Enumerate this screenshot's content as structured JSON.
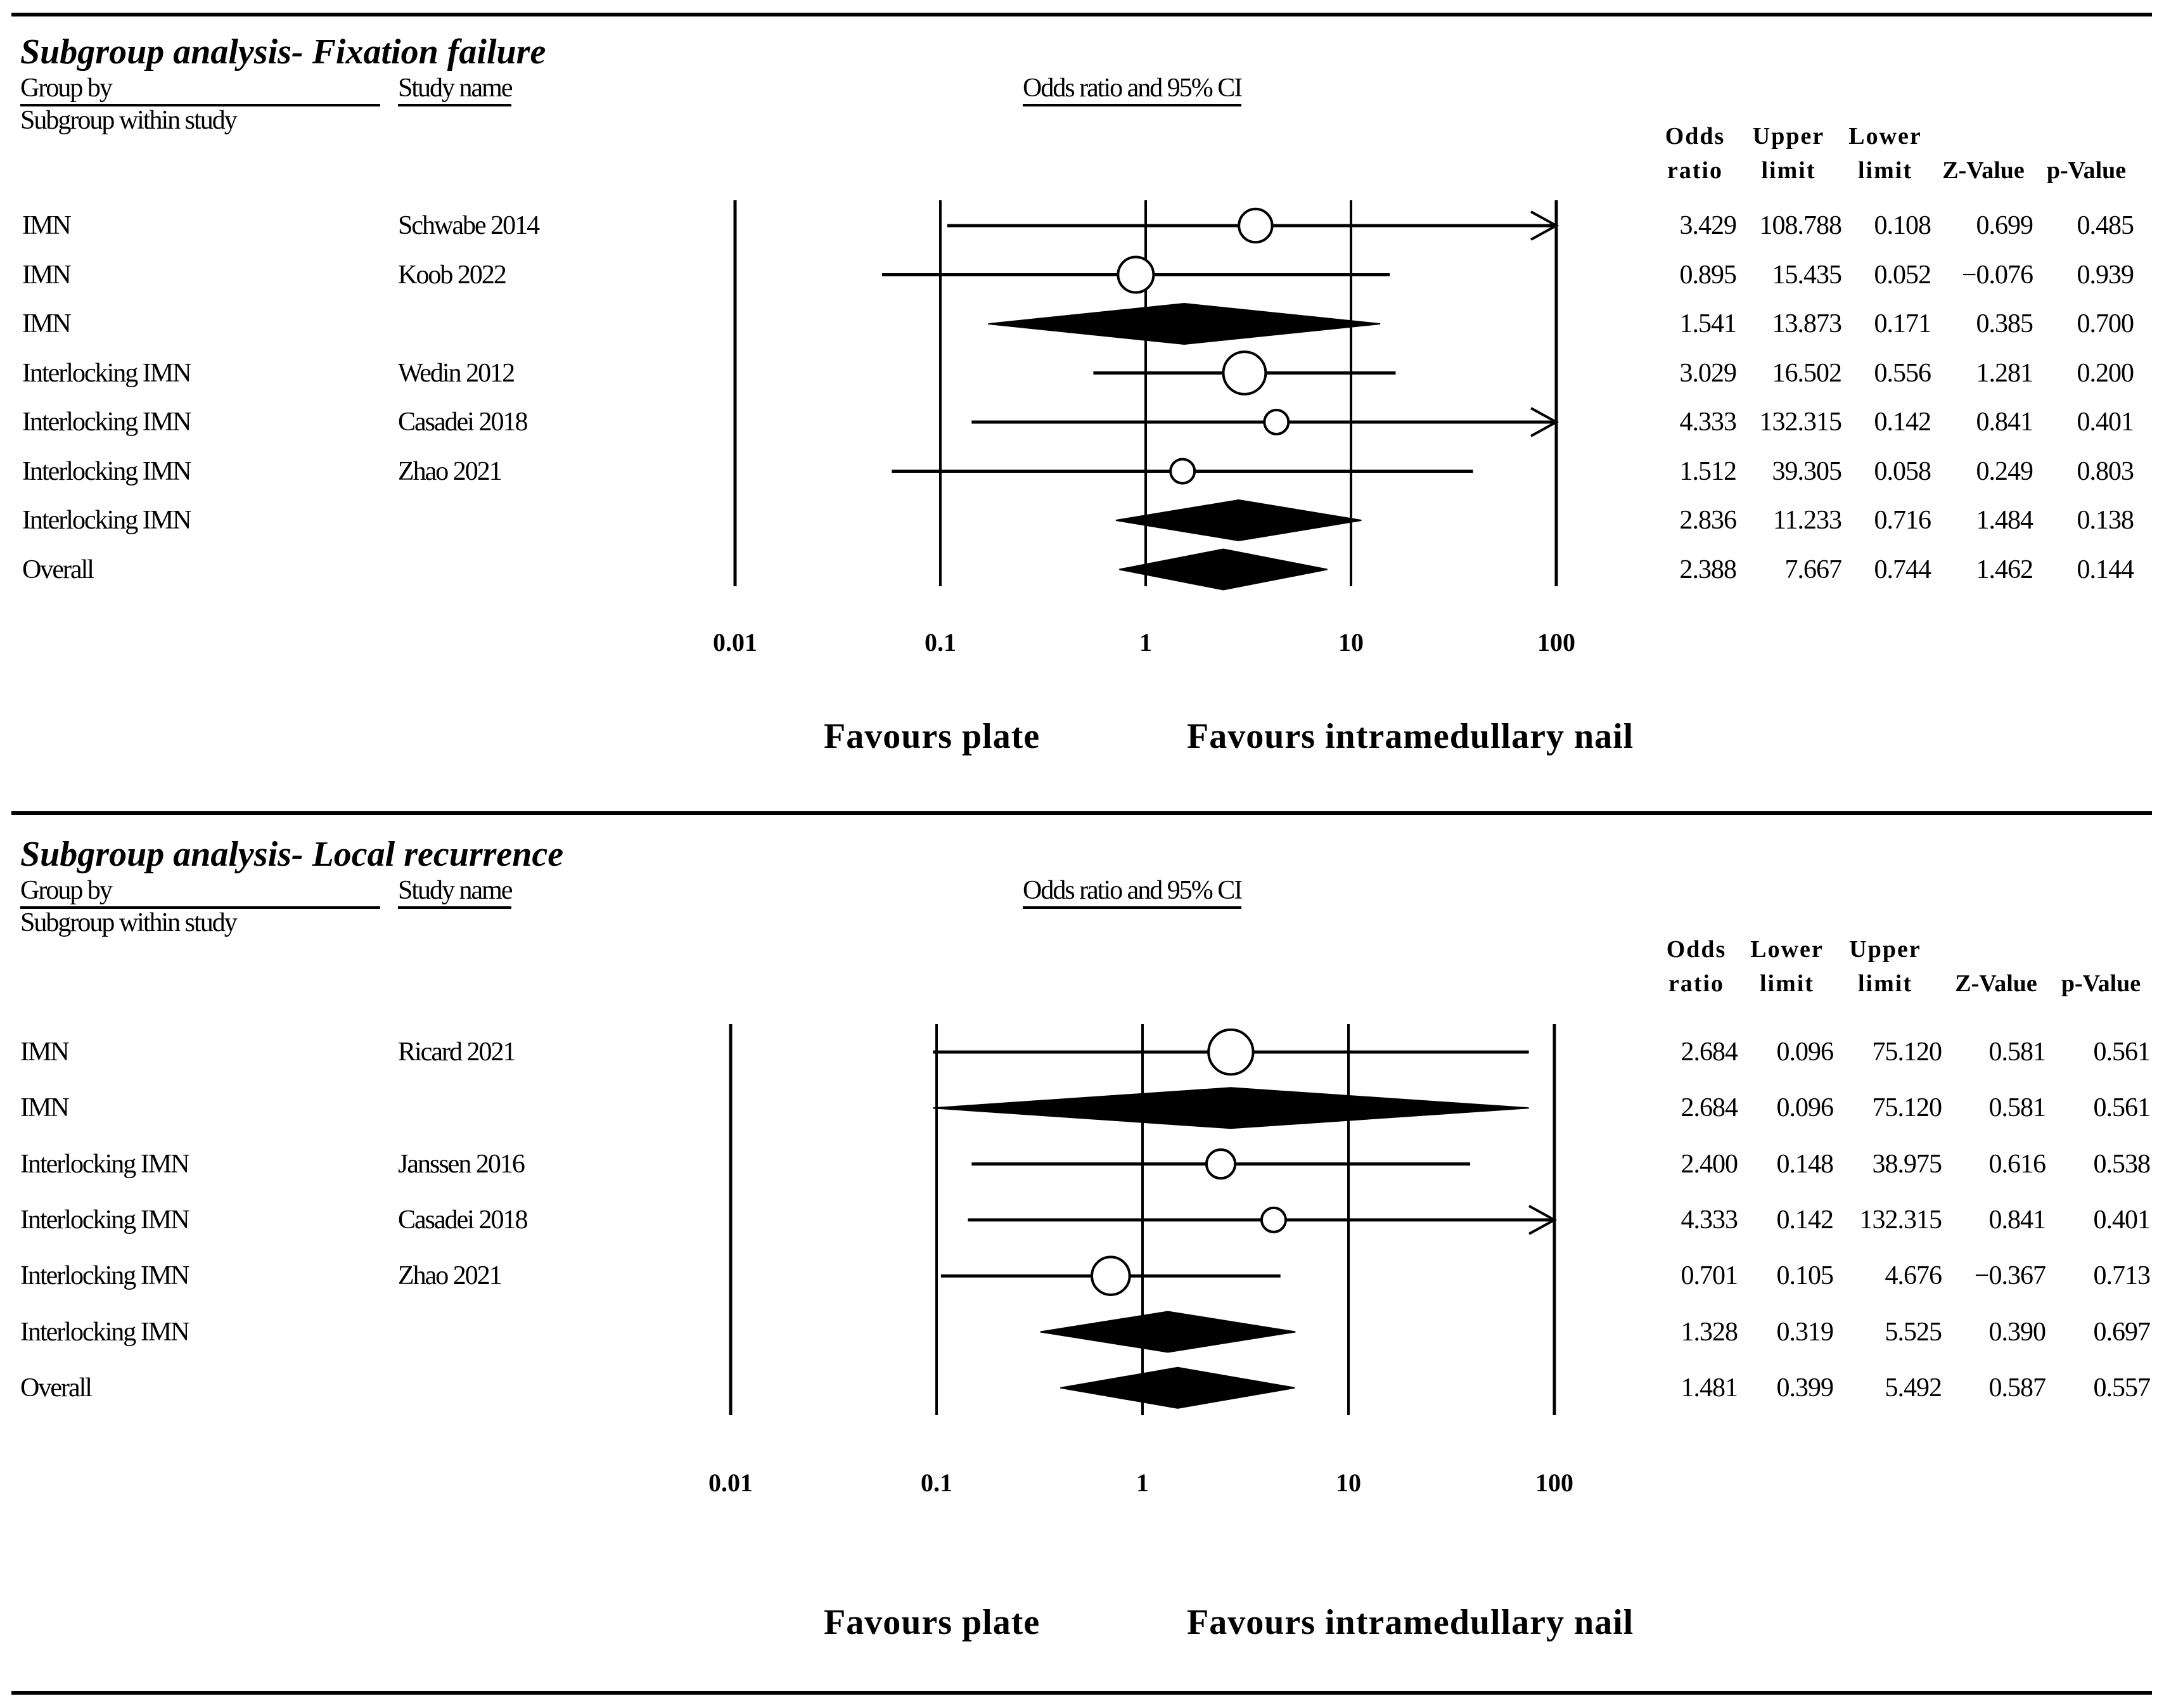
{
  "chart_data": [
    {
      "type": "forest",
      "title": "Subgroup  analysis- Fixation failure",
      "headers": {
        "group_by": "Group by",
        "subgroup_within_study": "Subgroup within study",
        "study_name": "Study name",
        "effect": "Odds ratio and 95% CI",
        "col1": [
          "Odds",
          "ratio"
        ],
        "col2": [
          "Upper",
          "limit"
        ],
        "col3": [
          "Lower",
          "limit"
        ],
        "col4": "Z-Value",
        "col5": "p-Value"
      },
      "x_scale": "log",
      "xlim": [
        0.01,
        100
      ],
      "x_ticks": [
        "0.01",
        "0.1",
        "1",
        "10",
        "100"
      ],
      "favours_left": "Favours plate",
      "favours_right": "Favours intramedullary nail",
      "rows": [
        {
          "group": "IMN",
          "study": "Schwabe 2014",
          "kind": "study",
          "weight": 0.9,
          "or": 3.429,
          "lower": 0.108,
          "upper": 108.788,
          "cells": [
            "3.429",
            "108.788",
            "0.108",
            "0.699",
            "0.485"
          ]
        },
        {
          "group": "IMN",
          "study": "Koob 2022",
          "kind": "study",
          "weight": 1.0,
          "or": 0.895,
          "lower": 0.052,
          "upper": 15.435,
          "cells": [
            "0.895",
            "15.435",
            "0.052",
            "−0.076",
            "0.939"
          ]
        },
        {
          "group": "IMN",
          "study": "",
          "kind": "summary",
          "or": 1.541,
          "lower": 0.171,
          "upper": 13.873,
          "cells": [
            "1.541",
            "13.873",
            "0.171",
            "0.385",
            "0.700"
          ]
        },
        {
          "group": "Interlocking IMN",
          "study": "Wedin 2012",
          "kind": "study",
          "weight": 1.3,
          "or": 3.029,
          "lower": 0.556,
          "upper": 16.502,
          "cells": [
            "3.029",
            "16.502",
            "0.556",
            "1.281",
            "0.200"
          ]
        },
        {
          "group": "Interlocking IMN",
          "study": "Casadei 2018",
          "kind": "study",
          "weight": 0.5,
          "or": 4.333,
          "lower": 0.142,
          "upper": 132.315,
          "cells": [
            "4.333",
            "132.315",
            "0.142",
            "0.841",
            "0.401"
          ]
        },
        {
          "group": "Interlocking IMN",
          "study": "Zhao 2021",
          "kind": "study",
          "weight": 0.5,
          "or": 1.512,
          "lower": 0.058,
          "upper": 39.305,
          "cells": [
            "1.512",
            "39.305",
            "0.058",
            "0.249",
            "0.803"
          ]
        },
        {
          "group": "Interlocking IMN",
          "study": "",
          "kind": "summary",
          "or": 2.836,
          "lower": 0.716,
          "upper": 11.233,
          "cells": [
            "2.836",
            "11.233",
            "0.716",
            "1.484",
            "0.138"
          ]
        },
        {
          "group": "Overall",
          "study": "",
          "kind": "summary",
          "or": 2.388,
          "lower": 0.744,
          "upper": 7.667,
          "cells": [
            "2.388",
            "7.667",
            "0.744",
            "1.462",
            "0.144"
          ]
        }
      ]
    },
    {
      "type": "forest",
      "title": "Subgroup  analysis- Local recurrence",
      "headers": {
        "group_by": "Group by",
        "subgroup_within_study": "Subgroup within study",
        "study_name": "Study name",
        "effect": "Odds ratio and 95% CI",
        "col1": [
          "Odds",
          "ratio"
        ],
        "col2": [
          "Lower",
          "limit"
        ],
        "col3": [
          "Upper",
          "limit"
        ],
        "col4": "Z-Value",
        "col5": "p-Value"
      },
      "x_scale": "log",
      "xlim": [
        0.01,
        100
      ],
      "x_ticks": [
        "0.01",
        "0.1",
        "1",
        "10",
        "100"
      ],
      "favours_left": "Favours plate",
      "favours_right": "Favours intramedullary nail",
      "rows": [
        {
          "group": "IMN",
          "study": "Ricard 2021",
          "kind": "study",
          "weight": 1.4,
          "or": 2.684,
          "lower": 0.096,
          "upper": 75.12,
          "cells": [
            "2.684",
            "0.096",
            "75.120",
            "0.581",
            "0.561"
          ]
        },
        {
          "group": "IMN",
          "study": "",
          "kind": "summary",
          "or": 2.684,
          "lower": 0.096,
          "upper": 75.12,
          "cells": [
            "2.684",
            "0.096",
            "75.120",
            "0.581",
            "0.561"
          ]
        },
        {
          "group": "Interlocking IMN",
          "study": "Janssen 2016",
          "kind": "study",
          "weight": 0.7,
          "or": 2.4,
          "lower": 0.148,
          "upper": 38.975,
          "cells": [
            "2.400",
            "0.148",
            "38.975",
            "0.616",
            "0.538"
          ]
        },
        {
          "group": "Interlocking IMN",
          "study": "Casadei 2018",
          "kind": "study",
          "weight": 0.5,
          "or": 4.333,
          "lower": 0.142,
          "upper": 132.315,
          "cells": [
            "4.333",
            "0.142",
            "132.315",
            "0.841",
            "0.401"
          ]
        },
        {
          "group": "Interlocking IMN",
          "study": "Zhao 2021",
          "kind": "study",
          "weight": 1.1,
          "or": 0.701,
          "lower": 0.105,
          "upper": 4.676,
          "cells": [
            "0.701",
            "0.105",
            "4.676",
            "−0.367",
            "0.713"
          ]
        },
        {
          "group": "Interlocking IMN",
          "study": "",
          "kind": "summary",
          "or": 1.328,
          "lower": 0.319,
          "upper": 5.525,
          "cells": [
            "1.328",
            "0.319",
            "5.525",
            "0.390",
            "0.697"
          ]
        },
        {
          "group": "Overall",
          "study": "",
          "kind": "summary",
          "or": 1.481,
          "lower": 0.399,
          "upper": 5.492,
          "cells": [
            "1.481",
            "0.399",
            "5.492",
            "0.587",
            "0.557"
          ]
        }
      ]
    }
  ]
}
